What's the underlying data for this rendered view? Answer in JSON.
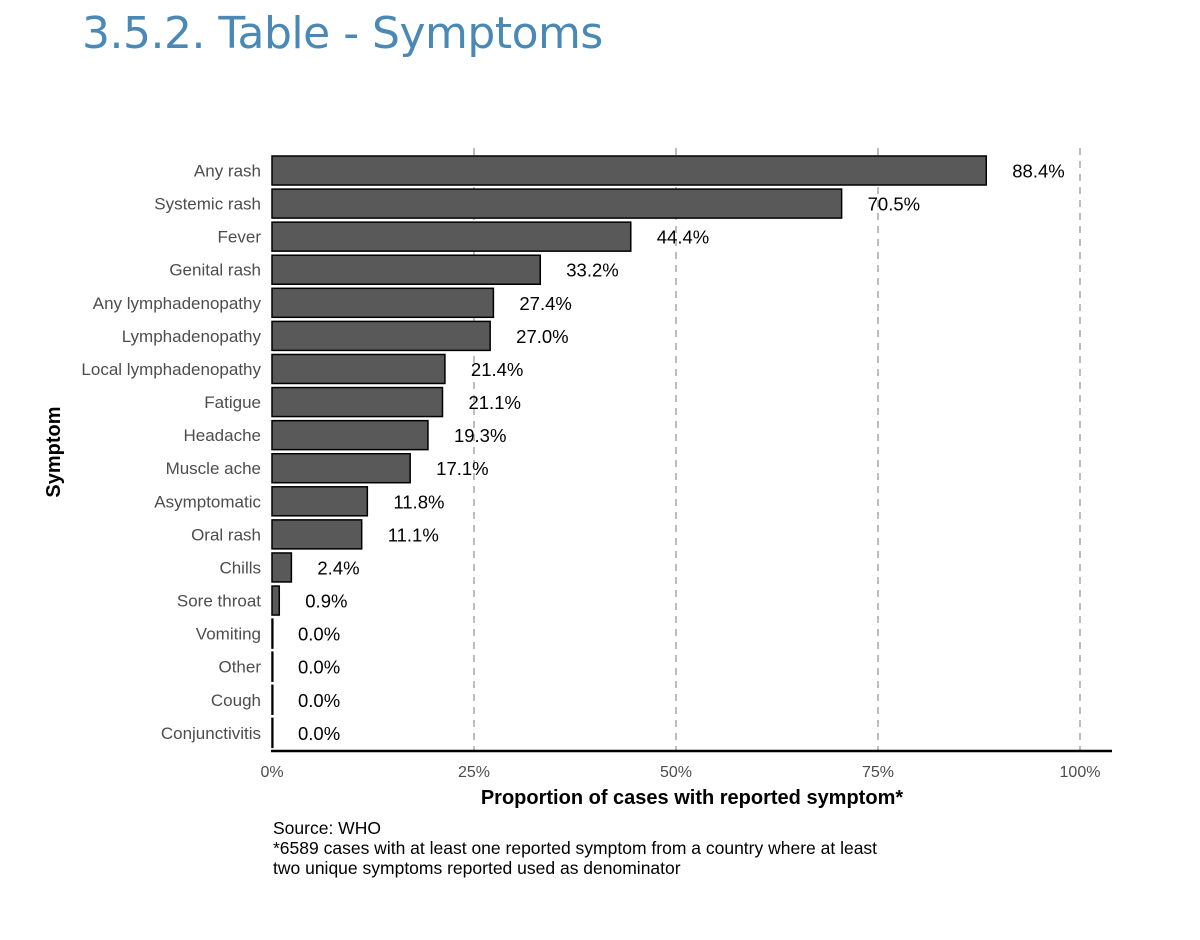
{
  "page": {
    "title": "3.5.2. Table - Symptoms"
  },
  "chart_data": {
    "type": "bar",
    "orientation": "horizontal",
    "categories": [
      "Any rash",
      "Systemic rash",
      "Fever",
      "Genital rash",
      "Any lymphadenopathy",
      "Lymphadenopathy",
      "Local lymphadenopathy",
      "Fatigue",
      "Headache",
      "Muscle ache",
      "Asymptomatic",
      "Oral rash",
      "Chills",
      "Sore throat",
      "Vomiting",
      "Other",
      "Cough",
      "Conjunctivitis"
    ],
    "values": [
      88.4,
      70.5,
      44.4,
      33.2,
      27.4,
      27.0,
      21.4,
      21.1,
      19.3,
      17.1,
      11.8,
      11.1,
      2.4,
      0.9,
      0.0,
      0.0,
      0.0,
      0.0
    ],
    "value_labels": [
      "88.4%",
      "70.5%",
      "44.4%",
      "33.2%",
      "27.4%",
      "27.0%",
      "21.4%",
      "21.1%",
      "19.3%",
      "17.1%",
      "11.8%",
      "11.1%",
      "2.4%",
      "0.9%",
      "0.0%",
      "0.0%",
      "0.0%",
      "0.0%"
    ],
    "xlabel": "Proportion of cases with reported symptom*",
    "ylabel": "Symptom",
    "xlim": [
      0,
      100
    ],
    "xticks": [
      0,
      25,
      50,
      75,
      100
    ],
    "xtick_labels": [
      "0%",
      "25%",
      "50%",
      "75%",
      "100%"
    ],
    "grid": "vertical dashed",
    "bar_color": "#595959",
    "bar_edge_color": "#000000",
    "grid_color": "#bdbdbd"
  },
  "caption": {
    "source": "Source: WHO",
    "note_line1": "*6589 cases with at least one reported symptom from a country where at least",
    "note_line2": "two unique symptoms reported used as denominator"
  }
}
